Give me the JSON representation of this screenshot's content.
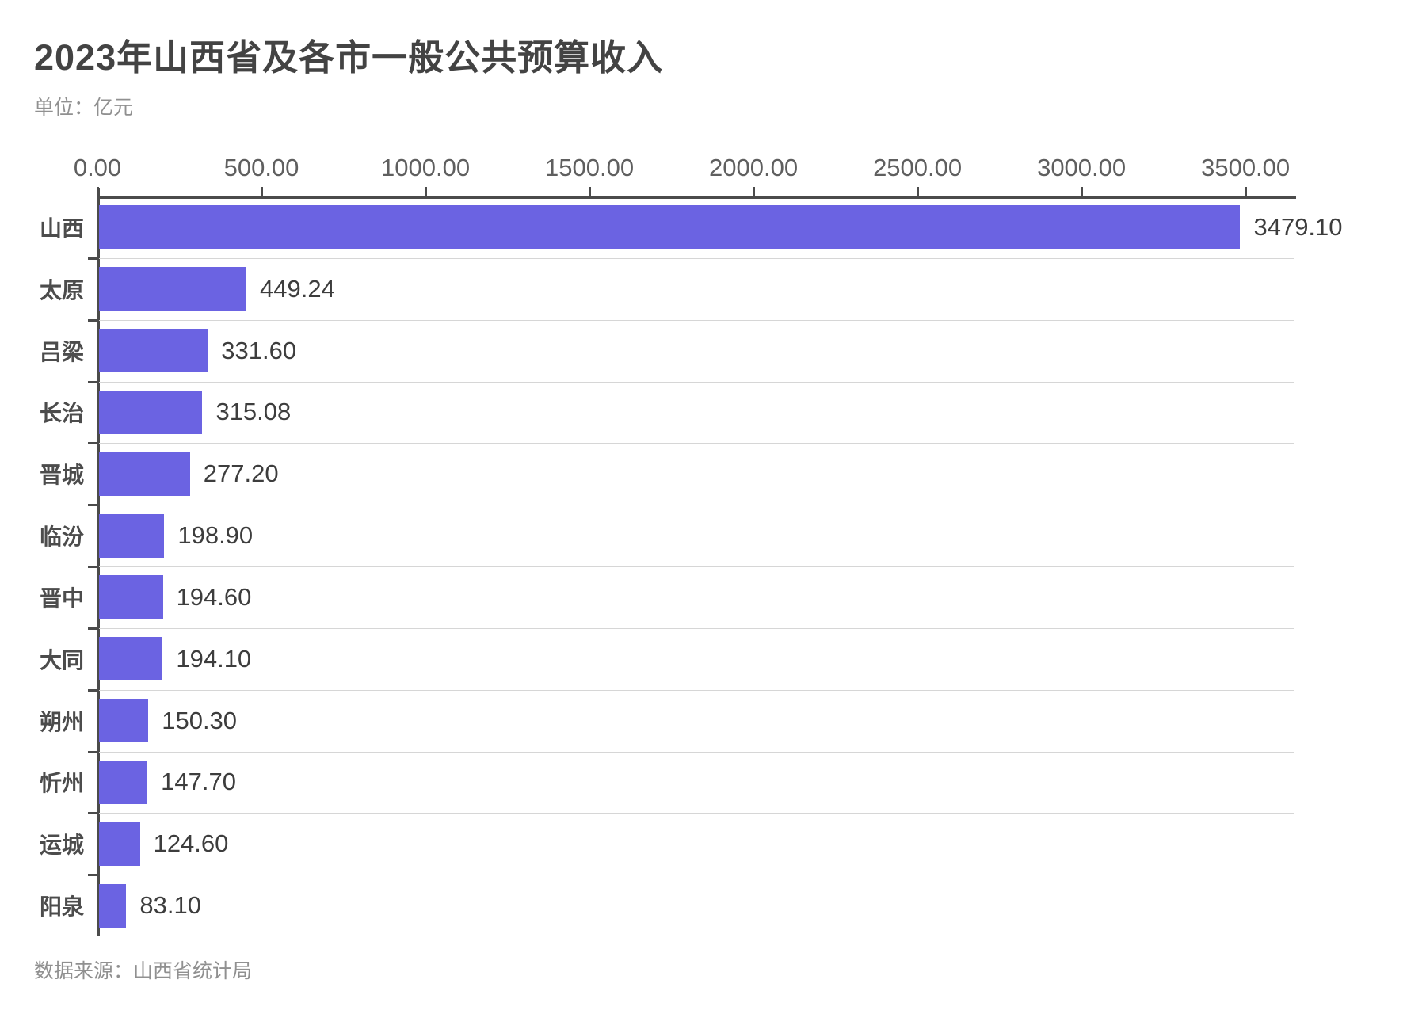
{
  "title": "2023年山西省及各市一般公共预算收入",
  "unit_label": "单位：亿元",
  "source_label": "数据来源：山西省统计局",
  "colors": {
    "bar": "#6B63E2",
    "axis": "#4b4b4b",
    "grid": "#d6d6d6",
    "title_text": "#434343",
    "muted_text": "#909090",
    "tick_text": "#5f5f5f",
    "category_text": "#4c4c4c",
    "value_text": "#3d3d3d",
    "background": "#ffffff"
  },
  "chart_data": {
    "type": "bar",
    "orientation": "horizontal",
    "title": "2023年山西省及各市一般公共预算收入",
    "xlabel": "",
    "ylabel": "",
    "unit": "亿元",
    "categories": [
      "山西",
      "太原",
      "吕梁",
      "长治",
      "晋城",
      "临汾",
      "晋中",
      "大同",
      "朔州",
      "忻州",
      "运城",
      "阳泉"
    ],
    "values": [
      3479.1,
      449.24,
      331.6,
      315.08,
      277.2,
      198.9,
      194.6,
      194.1,
      150.3,
      147.7,
      124.6,
      83.1
    ],
    "value_labels": [
      "3479.10",
      "449.24",
      "331.60",
      "315.08",
      "277.20",
      "198.90",
      "194.60",
      "194.10",
      "150.30",
      "147.70",
      "124.60",
      "83.10"
    ],
    "x_ticks": [
      0,
      500,
      1000,
      1500,
      2000,
      2500,
      3000,
      3500
    ],
    "x_tick_labels": [
      "0.00",
      "500.00",
      "1000.00",
      "1500.00",
      "2000.00",
      "2500.00",
      "3000.00",
      "3500.00"
    ],
    "xlim": [
      0,
      3647
    ],
    "grid": "row-separators",
    "legend": "none",
    "axis_position": "top",
    "source": "山西省统计局"
  }
}
